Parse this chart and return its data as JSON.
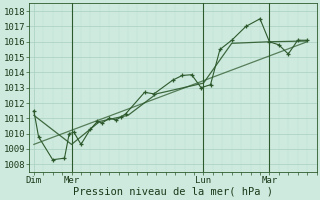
{
  "bg_color": "#ceeade",
  "grid_color_major": "#a8cfc0",
  "grid_color_minor": "#bcddd0",
  "line_color": "#2d5a2d",
  "ylabel_values": [
    1008,
    1009,
    1010,
    1011,
    1012,
    1013,
    1014,
    1015,
    1016,
    1017,
    1018
  ],
  "ylim": [
    1007.5,
    1018.5
  ],
  "xlabel": "Pression niveau de la mer( hPa )",
  "xtick_labels": [
    "Dim",
    "Mer",
    "Lun",
    "Mar"
  ],
  "xtick_positions": [
    0,
    16,
    72,
    100
  ],
  "xlim": [
    -2,
    120
  ],
  "vline_positions": [
    16,
    72,
    100
  ],
  "jagged_x": [
    0,
    2,
    8,
    13,
    15,
    17,
    20,
    24,
    27,
    29,
    32,
    35,
    37,
    39,
    47,
    51,
    59,
    63,
    67,
    71,
    75,
    79,
    84,
    90,
    96,
    100,
    104,
    108,
    112,
    116
  ],
  "jagged_y": [
    1011.5,
    1009.8,
    1008.3,
    1008.4,
    1010.0,
    1010.1,
    1009.3,
    1010.3,
    1010.8,
    1010.7,
    1011.0,
    1010.9,
    1011.1,
    1011.3,
    1012.7,
    1012.6,
    1013.5,
    1013.8,
    1013.85,
    1013.0,
    1013.2,
    1015.5,
    1016.1,
    1017.0,
    1017.5,
    1016.0,
    1015.8,
    1015.2,
    1016.1,
    1016.1
  ],
  "smooth_x": [
    0,
    16,
    28,
    40,
    52,
    72,
    84,
    100,
    116
  ],
  "smooth_y": [
    1011.2,
    1009.3,
    1010.8,
    1011.2,
    1012.6,
    1013.3,
    1015.9,
    1016.0,
    1016.05
  ],
  "trend_x": [
    0,
    116
  ],
  "trend_y": [
    1009.3,
    1016.0
  ],
  "tick_fontsize": 6.5,
  "xlabel_fontsize": 7.5
}
